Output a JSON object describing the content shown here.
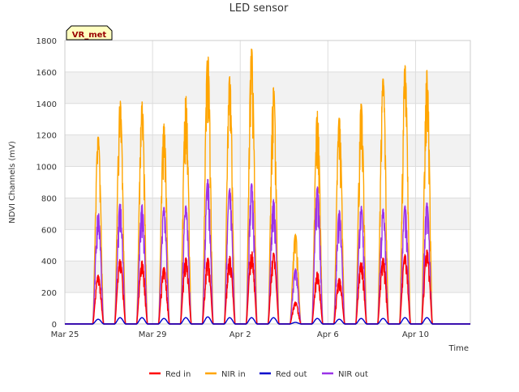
{
  "chart_data": {
    "type": "line",
    "title": "LED sensor",
    "xlabel": "Time",
    "ylabel": "NDVI Channels (mV)",
    "badge": "VR_met",
    "ylim": [
      0,
      1800
    ],
    "yticks": [
      0,
      200,
      400,
      600,
      800,
      1000,
      1200,
      1400,
      1600,
      1800
    ],
    "xlim_days": [
      0,
      18.5
    ],
    "xticks": [
      {
        "day": 0,
        "label": "Mar 25"
      },
      {
        "day": 4,
        "label": "Mar 29"
      },
      {
        "day": 8,
        "label": "Apr 2"
      },
      {
        "day": 12,
        "label": "Apr 6"
      },
      {
        "day": 16,
        "label": "Apr 10"
      }
    ],
    "grid": true,
    "band_shading": true,
    "legend_position": "bottom",
    "series": [
      {
        "name": "Red in",
        "color": "#ff0000",
        "daily_peaks": [
          0,
          310,
          410,
          400,
          360,
          420,
          420,
          430,
          465,
          450,
          140,
          330,
          290,
          400,
          420,
          440,
          470
        ]
      },
      {
        "name": "NIR in",
        "color": "#ffa500",
        "daily_peaks": [
          0,
          1190,
          1420,
          1410,
          1270,
          1450,
          1720,
          1570,
          1750,
          1500,
          570,
          1350,
          1310,
          1400,
          1560,
          1640,
          1610
        ]
      },
      {
        "name": "Red out",
        "color": "#0000cc",
        "daily_peaks": [
          0,
          30,
          40,
          40,
          35,
          40,
          45,
          40,
          40,
          40,
          10,
          35,
          30,
          35,
          35,
          40,
          40
        ]
      },
      {
        "name": "NIR out",
        "color": "#9a32e8",
        "daily_peaks": [
          0,
          710,
          770,
          760,
          740,
          750,
          920,
          860,
          890,
          790,
          350,
          870,
          720,
          750,
          730,
          750,
          770
        ]
      }
    ]
  }
}
